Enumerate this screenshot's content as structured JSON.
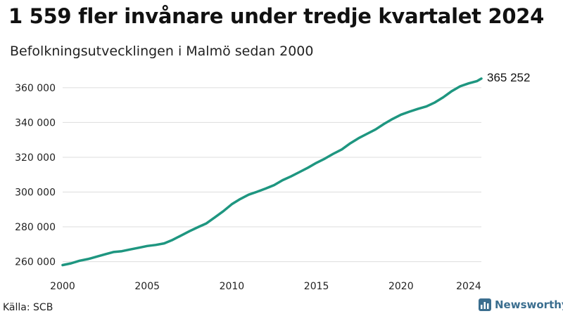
{
  "title": "1 559 fler invånare under tredje kvartalet 2024",
  "subtitle": "Befolkningsutvecklingen i Malmö sedan 2000",
  "source": "Källa: SCB",
  "brand": "Newsworthy",
  "colors": {
    "line": "#1e9680",
    "grid": "#dddddd",
    "brand": "#3b6e8f"
  },
  "chart_data": {
    "type": "line",
    "title": "1 559 fler invånare under tredje kvartalet 2024",
    "subtitle": "Befolkningsutvecklingen i Malmö sedan 2000",
    "xlabel": "",
    "ylabel": "",
    "xlim": [
      2000,
      2024.75
    ],
    "ylim": [
      257000,
      366000
    ],
    "x_ticks": [
      2000,
      2005,
      2010,
      2015,
      2020,
      2024
    ],
    "y_ticks": [
      260000,
      280000,
      300000,
      320000,
      340000,
      360000
    ],
    "y_tick_labels": [
      "260 000",
      "280 000",
      "300 000",
      "320 000",
      "340 000",
      "360 000"
    ],
    "grid": "horizontal",
    "end_label": "365 252",
    "x": [
      2000.0,
      2000.5,
      2001.0,
      2001.5,
      2002.0,
      2002.5,
      2003.0,
      2003.5,
      2004.0,
      2004.5,
      2005.0,
      2005.5,
      2006.0,
      2006.5,
      2007.0,
      2007.5,
      2008.0,
      2008.5,
      2009.0,
      2009.5,
      2010.0,
      2010.5,
      2011.0,
      2011.5,
      2012.0,
      2012.5,
      2013.0,
      2013.5,
      2014.0,
      2014.5,
      2015.0,
      2015.5,
      2016.0,
      2016.5,
      2017.0,
      2017.5,
      2018.0,
      2018.5,
      2019.0,
      2019.5,
      2020.0,
      2020.5,
      2021.0,
      2021.5,
      2022.0,
      2022.5,
      2023.0,
      2023.5,
      2024.0,
      2024.5,
      2024.75
    ],
    "values": [
      258000,
      259000,
      260500,
      261500,
      262800,
      264200,
      265500,
      266000,
      267000,
      268000,
      269000,
      269600,
      270500,
      272500,
      275000,
      277500,
      279800,
      282000,
      285500,
      289000,
      293000,
      296000,
      298500,
      300200,
      302000,
      304000,
      306800,
      309000,
      311500,
      314000,
      316800,
      319200,
      322000,
      324500,
      328000,
      331000,
      333500,
      336000,
      339200,
      342000,
      344500,
      346200,
      347800,
      349200,
      351500,
      354500,
      358000,
      360800,
      362500,
      363800,
      365252
    ]
  }
}
